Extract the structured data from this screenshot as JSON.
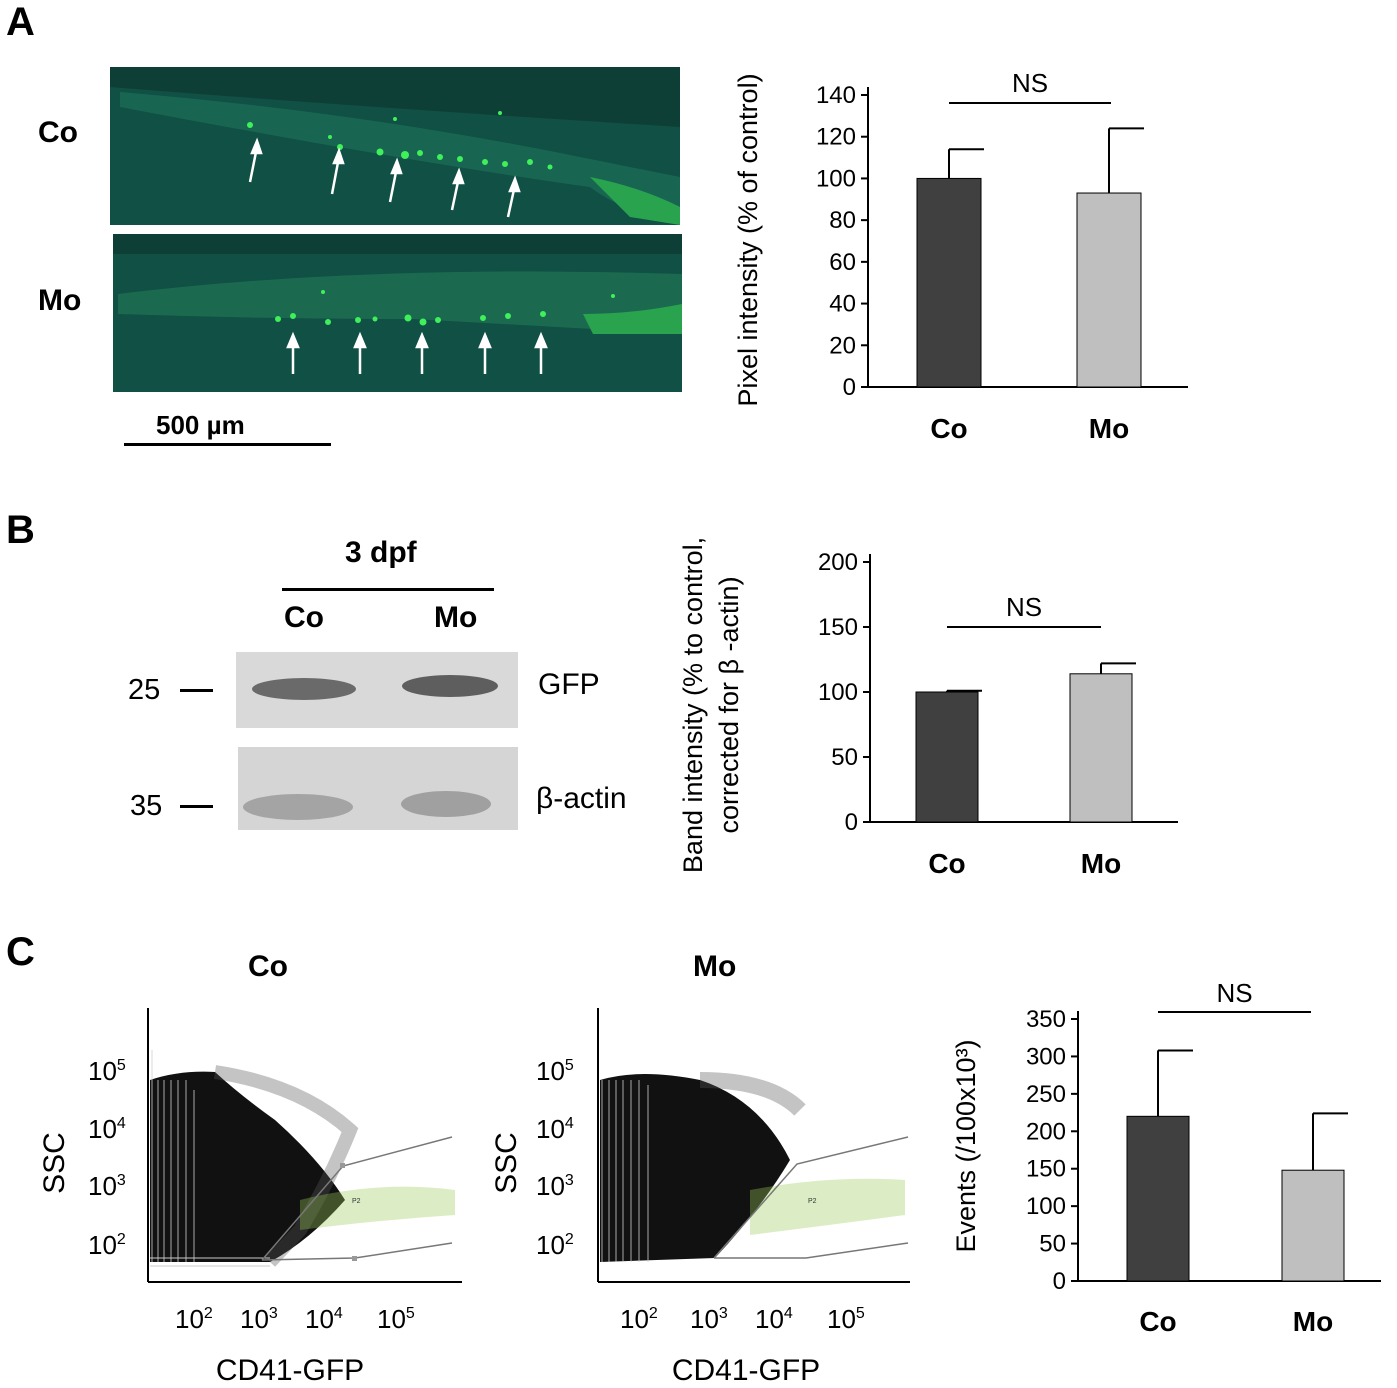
{
  "panel_a": {
    "letter": "A",
    "row_labels": [
      "Co",
      "Mo"
    ],
    "scale_bar_label": "500 µm"
  },
  "panel_b": {
    "letter": "B",
    "header": "3 dpf",
    "lane_labels": [
      "Co",
      "Mo"
    ],
    "markers": [
      "25",
      "35"
    ],
    "band_labels": [
      "GFP",
      "β-actin"
    ]
  },
  "panel_c": {
    "letter": "C",
    "flow_titles": [
      "Co",
      "Mo"
    ],
    "flow_xlabel": "CD41-GFP",
    "flow_ylabel": "SSC",
    "flow_gate_label": "P2",
    "flow_x_ticks": [
      {
        "base": "10",
        "exp": "2"
      },
      {
        "base": "10",
        "exp": "3"
      },
      {
        "base": "10",
        "exp": "4"
      },
      {
        "base": "10",
        "exp": "5"
      }
    ],
    "flow_y_ticks": [
      {
        "base": "10",
        "exp": "5"
      },
      {
        "base": "10",
        "exp": "4"
      },
      {
        "base": "10",
        "exp": "3"
      },
      {
        "base": "10",
        "exp": "2"
      }
    ]
  },
  "colors": {
    "control_bar": "#404040",
    "morpholino_bar": "#bfbfbf",
    "micrograph_bg": "#0e3f36",
    "gfp_green": "#2fdc4a",
    "gate_events": "#9ccc5a"
  },
  "chart_data": [
    {
      "type": "bar",
      "id": "A",
      "categories": [
        "Co",
        "Mo"
      ],
      "values": [
        100,
        93
      ],
      "errors": [
        14,
        31
      ],
      "ylabel": "Pixel intensity (% of control)",
      "ylim": [
        0,
        140
      ],
      "yticks": [
        0,
        20,
        40,
        60,
        80,
        100,
        120,
        140
      ],
      "annotation": "NS"
    },
    {
      "type": "bar",
      "id": "B",
      "categories": [
        "Co",
        "Mo"
      ],
      "values": [
        100,
        114
      ],
      "errors": [
        1,
        8
      ],
      "ylabel": "Band intensity (% to control, corrected for β -actin)",
      "ylabel_lines": [
        "Band intensity (% to control,",
        "corrected for β -actin)"
      ],
      "ylim": [
        0,
        200
      ],
      "yticks": [
        0,
        50,
        100,
        150,
        200
      ],
      "annotation": "NS"
    },
    {
      "type": "bar",
      "id": "C",
      "categories": [
        "Co",
        "Mo"
      ],
      "values": [
        220,
        148
      ],
      "errors": [
        88,
        76
      ],
      "ylabel": "Events (/100x10³)",
      "ylim": [
        0,
        350
      ],
      "yticks": [
        0,
        50,
        100,
        150,
        200,
        250,
        300,
        350
      ],
      "annotation": "NS"
    }
  ]
}
